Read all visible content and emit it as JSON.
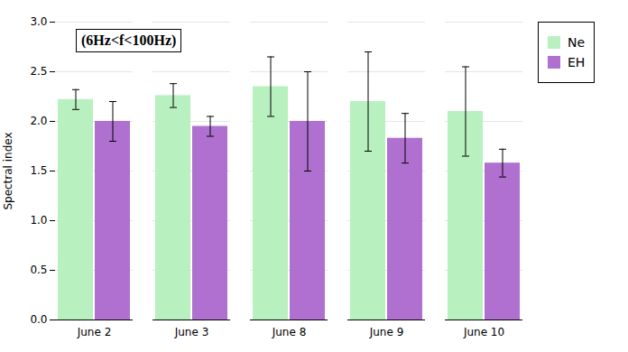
{
  "chart_data": {
    "type": "bar",
    "categories": [
      "June 2",
      "June 3",
      "June 8",
      "June 9",
      "June 10"
    ],
    "series": [
      {
        "name": "Ne",
        "color": "#b8f0c0",
        "values": [
          2.22,
          2.26,
          2.35,
          2.2,
          2.1
        ],
        "errors": [
          0.1,
          0.12,
          0.3,
          0.5,
          0.45
        ]
      },
      {
        "name": "EH",
        "color": "#b070d0",
        "values": [
          2.0,
          1.95,
          2.0,
          1.83,
          1.58
        ],
        "errors": [
          0.2,
          0.1,
          0.5,
          0.25,
          0.14
        ]
      }
    ],
    "ylabel": "Spectral index",
    "ylim": [
      0,
      3.0
    ],
    "yticks": [
      {
        "value": 0,
        "label": "0.0"
      },
      0.5,
      {
        "value": 1.0,
        "label": "1.0"
      },
      1.5,
      {
        "value": 2.0,
        "label": "2.0"
      },
      2.5,
      {
        "value": 3.0,
        "label": "3.0"
      }
    ],
    "annotation": "(6Hz<f<100Hz)",
    "grid": true,
    "legend": "right"
  }
}
